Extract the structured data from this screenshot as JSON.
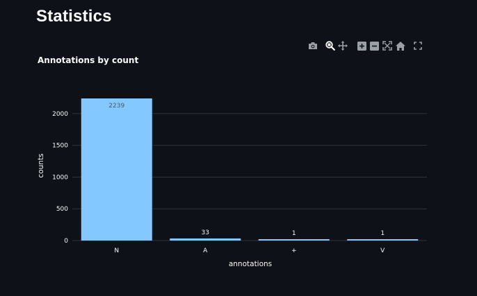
{
  "page": {
    "title": "Statistics"
  },
  "modebar": {
    "icons": [
      {
        "name": "camera-icon",
        "label": "Download plot as a png"
      },
      {
        "name": "zoom-icon",
        "label": "Zoom"
      },
      {
        "name": "pan-icon",
        "label": "Pan"
      },
      {
        "name": "zoom-in-icon",
        "label": "Zoom in"
      },
      {
        "name": "zoom-out-icon",
        "label": "Zoom out"
      },
      {
        "name": "autoscale-icon",
        "label": "Autoscale"
      },
      {
        "name": "home-icon",
        "label": "Reset axes"
      },
      {
        "name": "fullscreen-icon",
        "label": "View fullscreen"
      }
    ]
  },
  "colors": {
    "background": "#0e1117",
    "bar": "#83c9ff",
    "grid": "#31333f",
    "text": "#fafafa",
    "inside_label": "#4a5866",
    "icon": "#9aa0a6"
  },
  "chart_data": {
    "type": "bar",
    "title": "Annotations by count",
    "xlabel": "annotations",
    "ylabel": "counts",
    "categories": [
      "N",
      "A",
      "+",
      "V"
    ],
    "values": [
      2239,
      33,
      1,
      1
    ],
    "ylim": [
      0,
      2239
    ],
    "yticks": [
      0,
      500,
      1000,
      1500,
      2000
    ],
    "grid": true
  }
}
